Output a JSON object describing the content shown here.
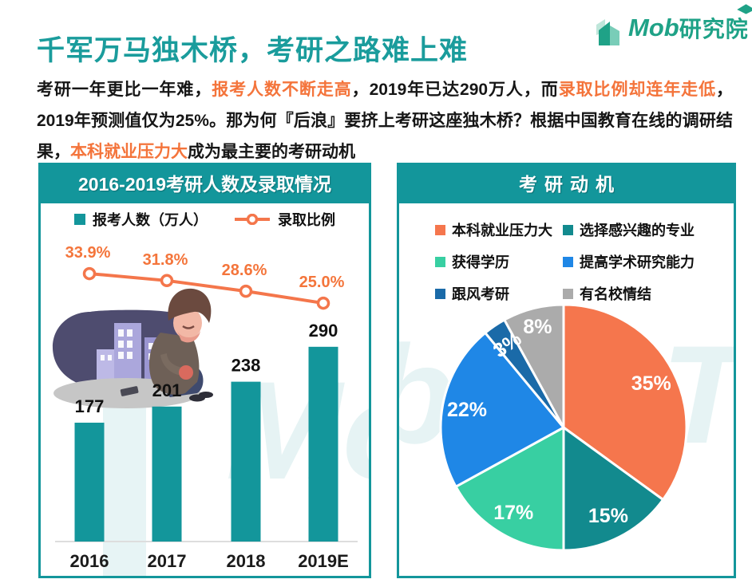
{
  "header": {
    "title": "千军万马独木桥，考研之路难上难",
    "logo": {
      "brand": "Mob",
      "suffix": "研究院"
    }
  },
  "intro": {
    "segments": [
      {
        "text": "考研一年更比一年难，",
        "highlight": false
      },
      {
        "text": "报考人数不断走高",
        "highlight": true
      },
      {
        "text": "，2019年已达290万人，而",
        "highlight": false
      },
      {
        "text": "录取比例却连年走低",
        "highlight": true
      },
      {
        "text": "，2019年预测值仅为25%。那为何『后浪』要挤上考研这座独木桥？根据中国教育在线的调研结果，",
        "highlight": false
      },
      {
        "text": "本科就业压力大",
        "highlight": true
      },
      {
        "text": "成为最主要的考研动机",
        "highlight": false
      }
    ]
  },
  "colors": {
    "teal": "#13969B",
    "title_teal": "#1A9C9C",
    "highlight_orange": "#F4743B",
    "line_orange": "#F4764B",
    "logo_green": "#1FA287",
    "axis_gray": "#DDDDDD"
  },
  "decorations": {
    "watermark_left": "Mo",
    "watermark_right_b": "b",
    "watermark_right_th": "Th"
  },
  "chart_data": [
    {
      "type": "bar",
      "title": "2016-2019考研人数及录取情况",
      "categories": [
        "2016",
        "2017",
        "2018",
        "2019E"
      ],
      "series": [
        {
          "name": "报考人数（万人）",
          "type": "bar",
          "values": [
            177,
            201,
            238,
            290
          ],
          "value_labels": [
            "177",
            "201",
            "238",
            "290"
          ],
          "color": "#13969B"
        },
        {
          "name": "录取比例",
          "type": "line",
          "values": [
            33.9,
            31.8,
            28.6,
            25.0
          ],
          "value_labels": [
            "33.9%",
            "31.8%",
            "28.6%",
            "25.0%"
          ],
          "color": "#F4764B"
        }
      ],
      "legend_position": "top",
      "grid": false
    },
    {
      "type": "pie",
      "title": "考研动机",
      "slices": [
        {
          "label": "本科就业压力大",
          "value": 35,
          "display": "35%",
          "color": "#F5764D"
        },
        {
          "label": "选择感兴趣的专业",
          "value": 15,
          "display": "15%",
          "color": "#128A8E"
        },
        {
          "label": "获得学历",
          "value": 17,
          "display": "17%",
          "color": "#38CFA2"
        },
        {
          "label": "提高学术研究能力",
          "value": 22,
          "display": "22%",
          "color": "#1F87E6"
        },
        {
          "label": "跟风考研",
          "value": 3,
          "display": "3%",
          "color": "#1A6AA8"
        },
        {
          "label": "有名校情结",
          "value": 8,
          "display": "8%",
          "color": "#ABABAB"
        }
      ],
      "start_angle": 0,
      "direction": "clockwise",
      "legend_position": "top"
    }
  ]
}
